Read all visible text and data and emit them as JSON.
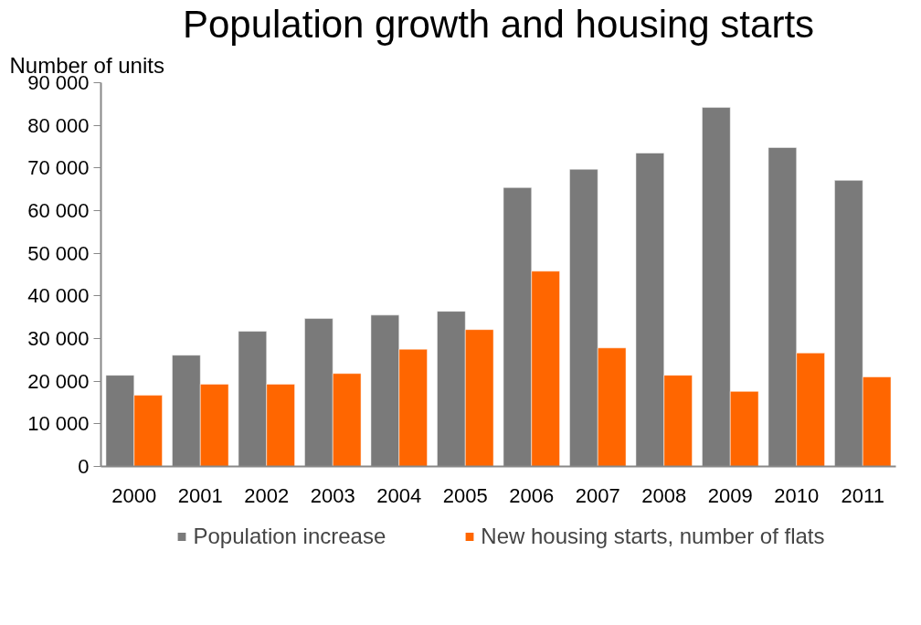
{
  "chart_data": {
    "type": "bar",
    "title": "Population growth and housing starts",
    "ylabel": "Number of units",
    "categories": [
      "2000",
      "2001",
      "2002",
      "2003",
      "2004",
      "2005",
      "2006",
      "2007",
      "2008",
      "2009",
      "2010",
      "2011"
    ],
    "series": [
      {
        "name": "Population increase",
        "color": "#7a7a7a",
        "values": [
          21400,
          26100,
          31700,
          34700,
          35500,
          36400,
          65400,
          69700,
          73500,
          84200,
          74800,
          67100
        ]
      },
      {
        "name": "New housing starts, number of flats",
        "color": "#ff6600",
        "values": [
          16700,
          19300,
          19300,
          21800,
          27500,
          32100,
          45800,
          27800,
          21400,
          17600,
          26600,
          21000
        ]
      }
    ],
    "ylim": [
      0,
      90000
    ],
    "yticks": [
      {
        "value": 0,
        "label": "0"
      },
      {
        "value": 10000,
        "label": "10 000"
      },
      {
        "value": 20000,
        "label": "20 000"
      },
      {
        "value": 30000,
        "label": "30 000"
      },
      {
        "value": 40000,
        "label": "40 000"
      },
      {
        "value": 50000,
        "label": "50 000"
      },
      {
        "value": 60000,
        "label": "60 000"
      },
      {
        "value": 70000,
        "label": "70 000"
      },
      {
        "value": 80000,
        "label": "80 000"
      },
      {
        "value": 90000,
        "label": "90 000"
      }
    ],
    "grid": false,
    "legend": "bottom"
  }
}
